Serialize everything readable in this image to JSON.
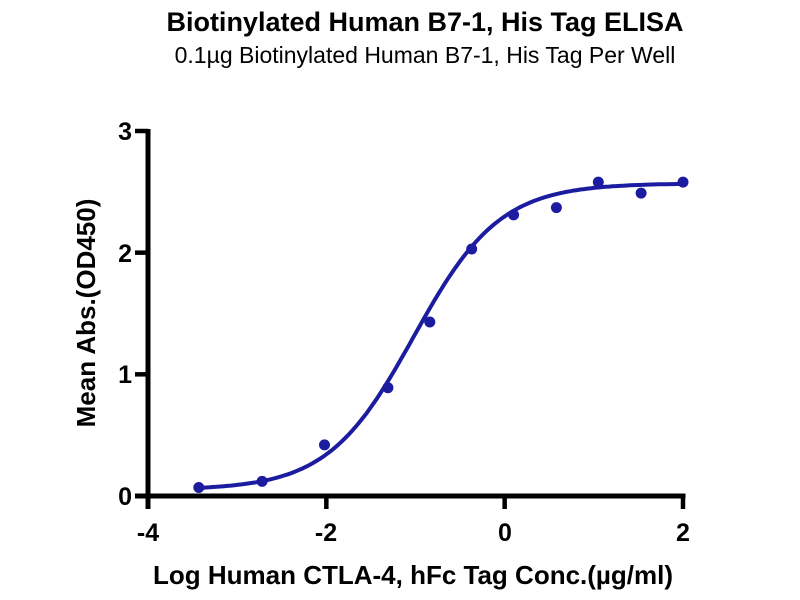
{
  "chart_data": {
    "type": "scatter",
    "title": "Biotinylated Human B7-1, His Tag ELISA",
    "subtitle": "0.1µg Biotinylated Human B7-1, His Tag Per Well",
    "xlabel": "Log Human CTLA-4, hFc Tag Conc.(µg/ml)",
    "ylabel": "Mean Abs.(OD450)",
    "xlim": [
      -4,
      2
    ],
    "ylim": [
      0,
      3
    ],
    "xticks": [
      -4,
      -2,
      0,
      2
    ],
    "yticks": [
      0,
      1,
      2,
      3
    ],
    "grid": false,
    "legend": "none",
    "points": {
      "x": [
        -3.43,
        -2.72,
        -2.02,
        -1.31,
        -0.84,
        -0.37,
        0.1,
        0.58,
        1.05,
        1.53,
        2.0
      ],
      "y": [
        0.07,
        0.12,
        0.42,
        0.89,
        1.43,
        2.03,
        2.31,
        2.37,
        2.58,
        2.49,
        2.58
      ]
    },
    "fit_curve": {
      "model": "4PL",
      "bottom": 0.05,
      "top": 2.57,
      "logEC50": -1.02,
      "hill": 0.9,
      "x_start": -3.43,
      "x_end": 2.0
    },
    "marker": {
      "shape": "circle",
      "radius_px": 5.5
    },
    "colors": {
      "marker": "#1c1ca0",
      "curve": "#1c1ca0",
      "axis": "#000000",
      "text": "#000000",
      "background": "#ffffff"
    }
  }
}
